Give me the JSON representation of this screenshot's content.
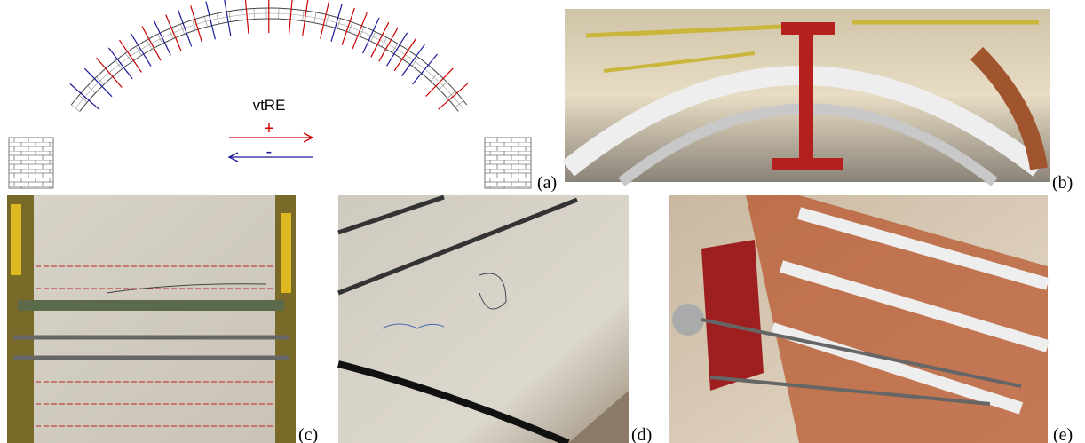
{
  "diagram": {
    "title": "vtRE",
    "positive": "+",
    "negative": "-"
  },
  "panels": [
    {
      "label": "(a)"
    },
    {
      "label": "(b)"
    },
    {
      "label": "(c)"
    },
    {
      "label": "(d)"
    },
    {
      "label": "(e)"
    }
  ]
}
